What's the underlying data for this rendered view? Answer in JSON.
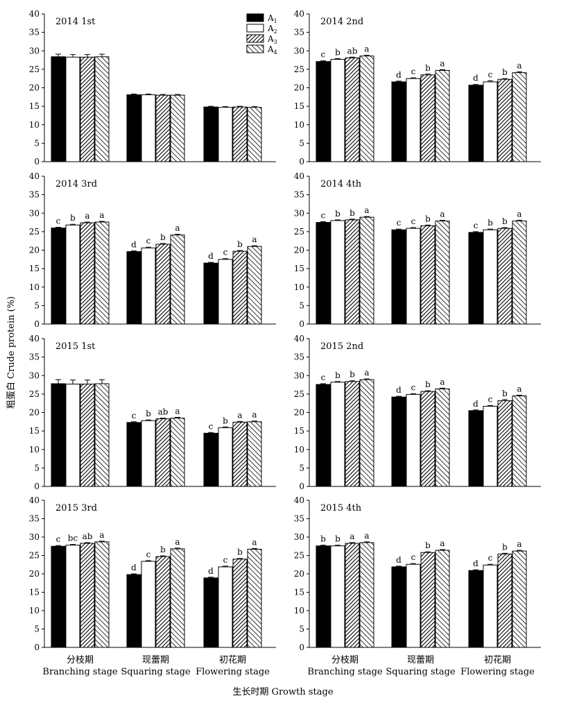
{
  "chart_data": {
    "type": "bar",
    "ylabel": "粗蛋白 Crude protein (%)",
    "xlabel": "生长时期 Growth stage",
    "ylim": [
      0,
      40
    ],
    "yticks": [
      0,
      5,
      10,
      15,
      20,
      25,
      30,
      35,
      40
    ],
    "categories": [
      {
        "cn": "分枝期",
        "en": "Branching stage"
      },
      {
        "cn": "现蕾期",
        "en": "Squaring stage"
      },
      {
        "cn": "初花期",
        "en": "Flowering stage"
      }
    ],
    "legend": [
      {
        "base": "A",
        "sub": "1",
        "fill": "solid"
      },
      {
        "base": "A",
        "sub": "2",
        "fill": "white"
      },
      {
        "base": "A",
        "sub": "3",
        "fill": "dense-hatch"
      },
      {
        "base": "A",
        "sub": "4",
        "fill": "wide-hatch"
      }
    ],
    "panels": [
      {
        "title": "2014 1st",
        "values": [
          [
            28.4,
            28.3,
            28.3,
            28.4
          ],
          [
            18.1,
            18.1,
            18.0,
            18.0
          ],
          [
            14.8,
            14.7,
            14.8,
            14.7
          ]
        ],
        "errors": [
          [
            0.7,
            0.7,
            0.7,
            0.7
          ],
          [
            0.2,
            0.2,
            0.2,
            0.2
          ],
          [
            0.2,
            0.2,
            0.2,
            0.2
          ]
        ],
        "letters": [
          [
            "",
            "",
            "",
            ""
          ],
          [
            "",
            "",
            "",
            ""
          ],
          [
            "",
            "",
            "",
            ""
          ]
        ]
      },
      {
        "title": "2014 2nd",
        "values": [
          [
            27.1,
            27.7,
            28.1,
            28.6
          ],
          [
            21.6,
            22.5,
            23.5,
            24.7
          ],
          [
            20.7,
            21.6,
            22.3,
            24.1
          ]
        ],
        "errors": [
          [
            0.2,
            0.2,
            0.2,
            0.2
          ],
          [
            0.2,
            0.2,
            0.2,
            0.2
          ],
          [
            0.2,
            0.3,
            0.2,
            0.2
          ]
        ],
        "letters": [
          [
            "c",
            "b",
            "ab",
            "a"
          ],
          [
            "d",
            "c",
            "b",
            "a"
          ],
          [
            "d",
            "c",
            "b",
            "a"
          ]
        ]
      },
      {
        "title": "2014 3rd",
        "values": [
          [
            26.0,
            26.8,
            27.4,
            27.6
          ],
          [
            19.6,
            20.6,
            21.6,
            24.1
          ],
          [
            16.5,
            17.5,
            19.7,
            21.0
          ]
        ],
        "errors": [
          [
            0.2,
            0.2,
            0.2,
            0.2
          ],
          [
            0.2,
            0.2,
            0.2,
            0.2
          ],
          [
            0.2,
            0.2,
            0.2,
            0.2
          ]
        ],
        "letters": [
          [
            "c",
            "b",
            "a",
            "a"
          ],
          [
            "d",
            "c",
            "b",
            "a"
          ],
          [
            "d",
            "c",
            "b",
            "a"
          ]
        ]
      },
      {
        "title": "2014 4th",
        "values": [
          [
            27.5,
            28.0,
            28.2,
            28.9
          ],
          [
            25.5,
            25.9,
            26.6,
            27.9
          ],
          [
            24.8,
            25.5,
            25.9,
            27.9
          ]
        ],
        "errors": [
          [
            0.2,
            0.2,
            0.2,
            0.2
          ],
          [
            0.2,
            0.2,
            0.2,
            0.2
          ],
          [
            0.2,
            0.2,
            0.2,
            0.2
          ]
        ],
        "letters": [
          [
            "c",
            "b",
            "b",
            "a"
          ],
          [
            "c",
            "c",
            "b",
            "a"
          ],
          [
            "c",
            "b",
            "b",
            "a"
          ]
        ]
      },
      {
        "title": "2015 1st",
        "values": [
          [
            27.8,
            27.7,
            27.7,
            27.8
          ],
          [
            17.3,
            17.8,
            18.3,
            18.5
          ],
          [
            14.4,
            15.9,
            17.4,
            17.5
          ]
        ],
        "errors": [
          [
            1.1,
            1.1,
            1.1,
            1.1
          ],
          [
            0.2,
            0.2,
            0.2,
            0.2
          ],
          [
            0.2,
            0.2,
            0.2,
            0.2
          ]
        ],
        "letters": [
          [
            "",
            "",
            "",
            ""
          ],
          [
            "c",
            "b",
            "ab",
            "a"
          ],
          [
            "c",
            "b",
            "a",
            "a"
          ]
        ]
      },
      {
        "title": "2015 2nd",
        "values": [
          [
            27.6,
            28.2,
            28.4,
            28.9
          ],
          [
            24.2,
            24.9,
            25.7,
            26.4
          ],
          [
            20.5,
            21.7,
            23.2,
            24.5
          ]
        ],
        "errors": [
          [
            0.2,
            0.2,
            0.2,
            0.2
          ],
          [
            0.2,
            0.2,
            0.2,
            0.2
          ],
          [
            0.2,
            0.2,
            0.3,
            0.2
          ]
        ],
        "letters": [
          [
            "c",
            "b",
            "b",
            "a"
          ],
          [
            "d",
            "c",
            "b",
            "a"
          ],
          [
            "d",
            "c",
            "b",
            "a"
          ]
        ]
      },
      {
        "title": "2015 3rd",
        "values": [
          [
            27.5,
            27.8,
            28.3,
            28.7
          ],
          [
            19.8,
            23.4,
            24.7,
            26.8
          ],
          [
            18.9,
            21.9,
            24.0,
            26.7
          ]
        ],
        "errors": [
          [
            0.2,
            0.2,
            0.2,
            0.2
          ],
          [
            0.2,
            0.2,
            0.2,
            0.2
          ],
          [
            0.2,
            0.2,
            0.2,
            0.2
          ]
        ],
        "letters": [
          [
            "c",
            "bc",
            "ab",
            "a"
          ],
          [
            "d",
            "c",
            "b",
            "a"
          ],
          [
            "d",
            "c",
            "b",
            "a"
          ]
        ]
      },
      {
        "title": "2015 4th",
        "values": [
          [
            27.6,
            27.6,
            28.3,
            28.5
          ],
          [
            21.9,
            22.6,
            25.8,
            26.4
          ],
          [
            20.9,
            22.4,
            25.4,
            26.2
          ]
        ],
        "errors": [
          [
            0.2,
            0.2,
            0.2,
            0.2
          ],
          [
            0.2,
            0.2,
            0.2,
            0.2
          ],
          [
            0.2,
            0.2,
            0.2,
            0.2
          ]
        ],
        "letters": [
          [
            "b",
            "b",
            "a",
            "a"
          ],
          [
            "d",
            "c",
            "b",
            "a"
          ],
          [
            "d",
            "c",
            "b",
            "a"
          ]
        ]
      }
    ]
  }
}
